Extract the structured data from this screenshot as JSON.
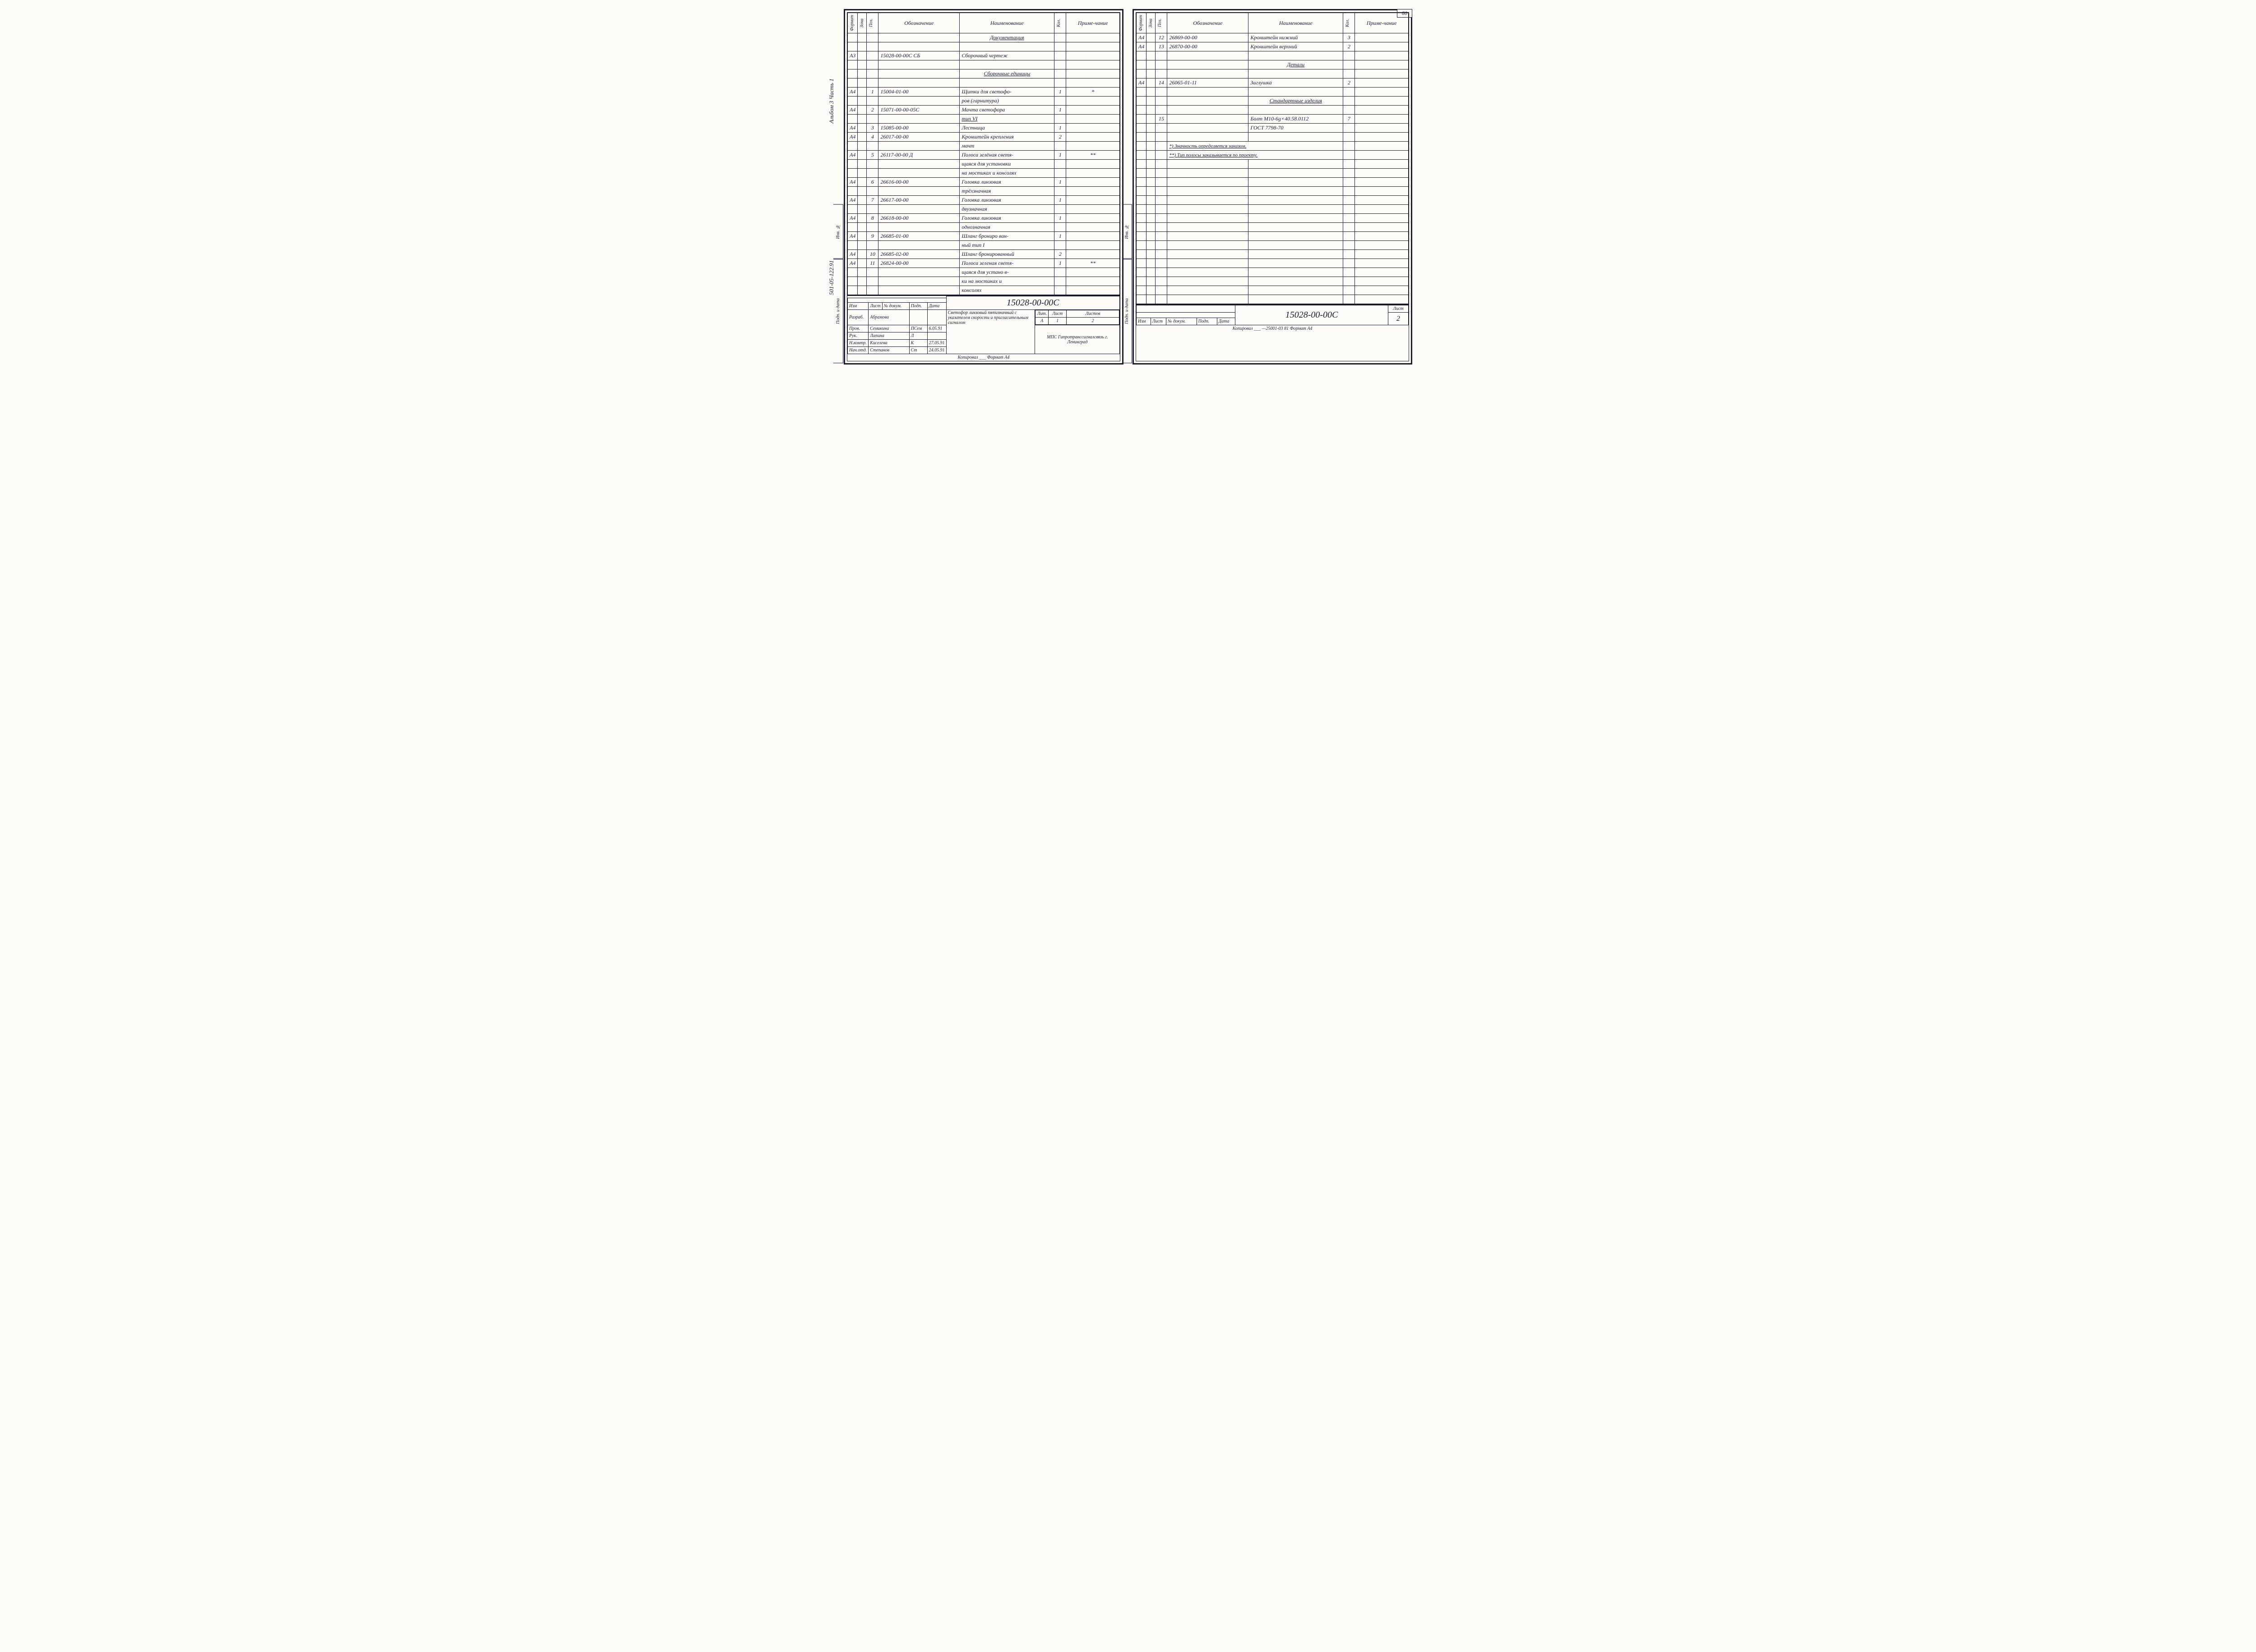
{
  "page_number_top": "80",
  "doc_number": "15028-00-00С",
  "side_labels_left": [
    "Альбом 3   Часть 1",
    "501-05-122.91"
  ],
  "side_boxes": [
    "Инв. №",
    "Подп. и дата"
  ],
  "headers": {
    "format": "Формат",
    "zone": "Зона",
    "pos": "Поз.",
    "designation": "Обозначение",
    "name": "Наименование",
    "qty": "Кол.",
    "note": "Приме-чание"
  },
  "left_rows": [
    {
      "fmt": "",
      "zone": "",
      "pos": "",
      "desig": "",
      "name": "Документация",
      "qty": "",
      "note": "",
      "underline": true,
      "center": true
    },
    {
      "fmt": "",
      "zone": "",
      "pos": "",
      "desig": "",
      "name": "",
      "qty": "",
      "note": ""
    },
    {
      "fmt": "А3",
      "zone": "",
      "pos": "",
      "desig": "15028-00-00С  СБ",
      "name": "Сборочный чертеж",
      "qty": "",
      "note": ""
    },
    {
      "fmt": "",
      "zone": "",
      "pos": "",
      "desig": "",
      "name": "",
      "qty": "",
      "note": ""
    },
    {
      "fmt": "",
      "zone": "",
      "pos": "",
      "desig": "",
      "name": "Сборочные единицы",
      "qty": "",
      "note": "",
      "underline": true,
      "center": true
    },
    {
      "fmt": "",
      "zone": "",
      "pos": "",
      "desig": "",
      "name": "",
      "qty": "",
      "note": ""
    },
    {
      "fmt": "А4",
      "zone": "",
      "pos": "1",
      "desig": "15004-01-00",
      "name": "Щитки для светофо-",
      "qty": "1",
      "note": "*"
    },
    {
      "fmt": "",
      "zone": "",
      "pos": "",
      "desig": "",
      "name": "ров (гарнитура)",
      "qty": "",
      "note": ""
    },
    {
      "fmt": "А4",
      "zone": "",
      "pos": "2",
      "desig": "15071-00-00-05С",
      "name": "Мачта светофора",
      "qty": "1",
      "note": ""
    },
    {
      "fmt": "",
      "zone": "",
      "pos": "",
      "desig": "",
      "name": "тип VI",
      "qty": "",
      "note": "",
      "name_underline": true
    },
    {
      "fmt": "А4",
      "zone": "",
      "pos": "3",
      "desig": "15085-00-00",
      "name": "Лестница",
      "qty": "1",
      "note": ""
    },
    {
      "fmt": "А4",
      "zone": "",
      "pos": "4",
      "desig": "26017-00-00",
      "name": "Кронштейн крепления",
      "qty": "2",
      "note": ""
    },
    {
      "fmt": "",
      "zone": "",
      "pos": "",
      "desig": "",
      "name": "мачт",
      "qty": "",
      "note": ""
    },
    {
      "fmt": "А4",
      "zone": "",
      "pos": "5",
      "desig": "26117-00-00 Д",
      "name": "Полоса зелёная светя-",
      "qty": "1",
      "note": "**"
    },
    {
      "fmt": "",
      "zone": "",
      "pos": "",
      "desig": "",
      "name": "щаяся для установки",
      "qty": "",
      "note": ""
    },
    {
      "fmt": "",
      "zone": "",
      "pos": "",
      "desig": "",
      "name": "на мостиках и консолях",
      "qty": "",
      "note": ""
    },
    {
      "fmt": "А4",
      "zone": "",
      "pos": "6",
      "desig": "26616-00-00",
      "name": "Головка линзовая",
      "qty": "1",
      "note": ""
    },
    {
      "fmt": "",
      "zone": "",
      "pos": "",
      "desig": "",
      "name": "трёхзначная",
      "qty": "",
      "note": ""
    },
    {
      "fmt": "А4",
      "zone": "",
      "pos": "7",
      "desig": "26617-00-00",
      "name": "Головка линзовая",
      "qty": "1",
      "note": ""
    },
    {
      "fmt": "",
      "zone": "",
      "pos": "",
      "desig": "",
      "name": "двузначная",
      "qty": "",
      "note": ""
    },
    {
      "fmt": "А4",
      "zone": "",
      "pos": "8",
      "desig": "26618-00-00",
      "name": "Головка линзовая",
      "qty": "1",
      "note": ""
    },
    {
      "fmt": "",
      "zone": "",
      "pos": "",
      "desig": "",
      "name": "однозначная",
      "qty": "",
      "note": ""
    },
    {
      "fmt": "А4",
      "zone": "",
      "pos": "9",
      "desig": "26685-01-00",
      "name": "Шланг брониро ван-",
      "qty": "1",
      "note": ""
    },
    {
      "fmt": "",
      "zone": "",
      "pos": "",
      "desig": "",
      "name": "ный тип I",
      "qty": "",
      "note": ""
    },
    {
      "fmt": "А4",
      "zone": "",
      "pos": "10",
      "desig": "26685-02-00",
      "name": "Шланг бронированный",
      "qty": "2",
      "note": ""
    },
    {
      "fmt": "А4",
      "zone": "",
      "pos": "11",
      "desig": "26824-00-00",
      "name": "Полоса зеленая светя-",
      "qty": "1",
      "note": "**"
    },
    {
      "fmt": "",
      "zone": "",
      "pos": "",
      "desig": "",
      "name": "щаяся для устано в-",
      "qty": "",
      "note": ""
    },
    {
      "fmt": "",
      "zone": "",
      "pos": "",
      "desig": "",
      "name": "ки на мостиках и",
      "qty": "",
      "note": ""
    },
    {
      "fmt": "",
      "zone": "",
      "pos": "",
      "desig": "",
      "name": "консолях",
      "qty": "",
      "note": ""
    }
  ],
  "right_rows": [
    {
      "fmt": "А4",
      "zone": "",
      "pos": "12",
      "desig": "26869-00-00",
      "name": "Кронштейн нижний",
      "qty": "3",
      "note": ""
    },
    {
      "fmt": "А4",
      "zone": "",
      "pos": "13",
      "desig": "26870-00-00",
      "name": "Кронштейн верхний",
      "qty": "2",
      "note": ""
    },
    {
      "fmt": "",
      "zone": "",
      "pos": "",
      "desig": "",
      "name": "",
      "qty": "",
      "note": ""
    },
    {
      "fmt": "",
      "zone": "",
      "pos": "",
      "desig": "",
      "name": "Детали",
      "qty": "",
      "note": "",
      "underline": true,
      "center": true
    },
    {
      "fmt": "",
      "zone": "",
      "pos": "",
      "desig": "",
      "name": "",
      "qty": "",
      "note": ""
    },
    {
      "fmt": "А4",
      "zone": "",
      "pos": "14",
      "desig": "26065-01-11",
      "name": "Заглушка",
      "qty": "2",
      "note": ""
    },
    {
      "fmt": "",
      "zone": "",
      "pos": "",
      "desig": "",
      "name": "",
      "qty": "",
      "note": ""
    },
    {
      "fmt": "",
      "zone": "",
      "pos": "",
      "desig": "",
      "name": "Стандартные изделия",
      "qty": "",
      "note": "",
      "underline": true,
      "center": true
    },
    {
      "fmt": "",
      "zone": "",
      "pos": "",
      "desig": "",
      "name": "",
      "qty": "",
      "note": ""
    },
    {
      "fmt": "",
      "zone": "",
      "pos": "15",
      "desig": "",
      "name": "Болт М10-6g×40.58.0112",
      "qty": "7",
      "note": ""
    },
    {
      "fmt": "",
      "zone": "",
      "pos": "",
      "desig": "",
      "name": "ГОСТ 7798-70",
      "qty": "",
      "note": ""
    },
    {
      "fmt": "",
      "zone": "",
      "pos": "",
      "desig": "",
      "name": "",
      "qty": "",
      "note": ""
    }
  ],
  "right_notes": [
    "*) Значность определяется заказом.",
    "**) Тип полосы заказывается по проекту."
  ],
  "right_empty_rows": 16,
  "title_block_left": {
    "rev_headers": [
      "Изм",
      "Лист",
      "№ докум.",
      "Подп.",
      "Дата"
    ],
    "roles": [
      {
        "role": "Разраб.",
        "name": "Абрамова",
        "sign": "",
        "date": ""
      },
      {
        "role": "Пров.",
        "name": "Семикина",
        "sign": "ПСем",
        "date": "6.05.91"
      },
      {
        "role": "Рук.",
        "name": "Лапина",
        "sign": "Л",
        "date": ""
      },
      {
        "role": "Н.контр.",
        "name": "Киселева",
        "sign": "К",
        "date": "27.05.91"
      },
      {
        "role": "Нач.отд.",
        "name": "Степанов",
        "sign": "Ст",
        "date": "24.05.91"
      }
    ],
    "title": "Светофор линзовый пятизначный с указателем скорости и пригласительным сигналом",
    "lit_label": "Лит.",
    "lit": "А",
    "sheet_label": "Лист",
    "sheet": "1",
    "sheets_label": "Листов",
    "sheets": "2",
    "org": "МПС Гипротранссигналсвязь г. Ленинград"
  },
  "title_block_right": {
    "rev_headers": [
      "Изм",
      "Лист",
      "№ докум.",
      "Подп.",
      "Дата"
    ],
    "sheet_label": "Лист",
    "sheet": "2"
  },
  "footer_left": "Копировал ___            Формат А4",
  "footer_right": "Копировал ___ —25001-03 81 Формат А4"
}
